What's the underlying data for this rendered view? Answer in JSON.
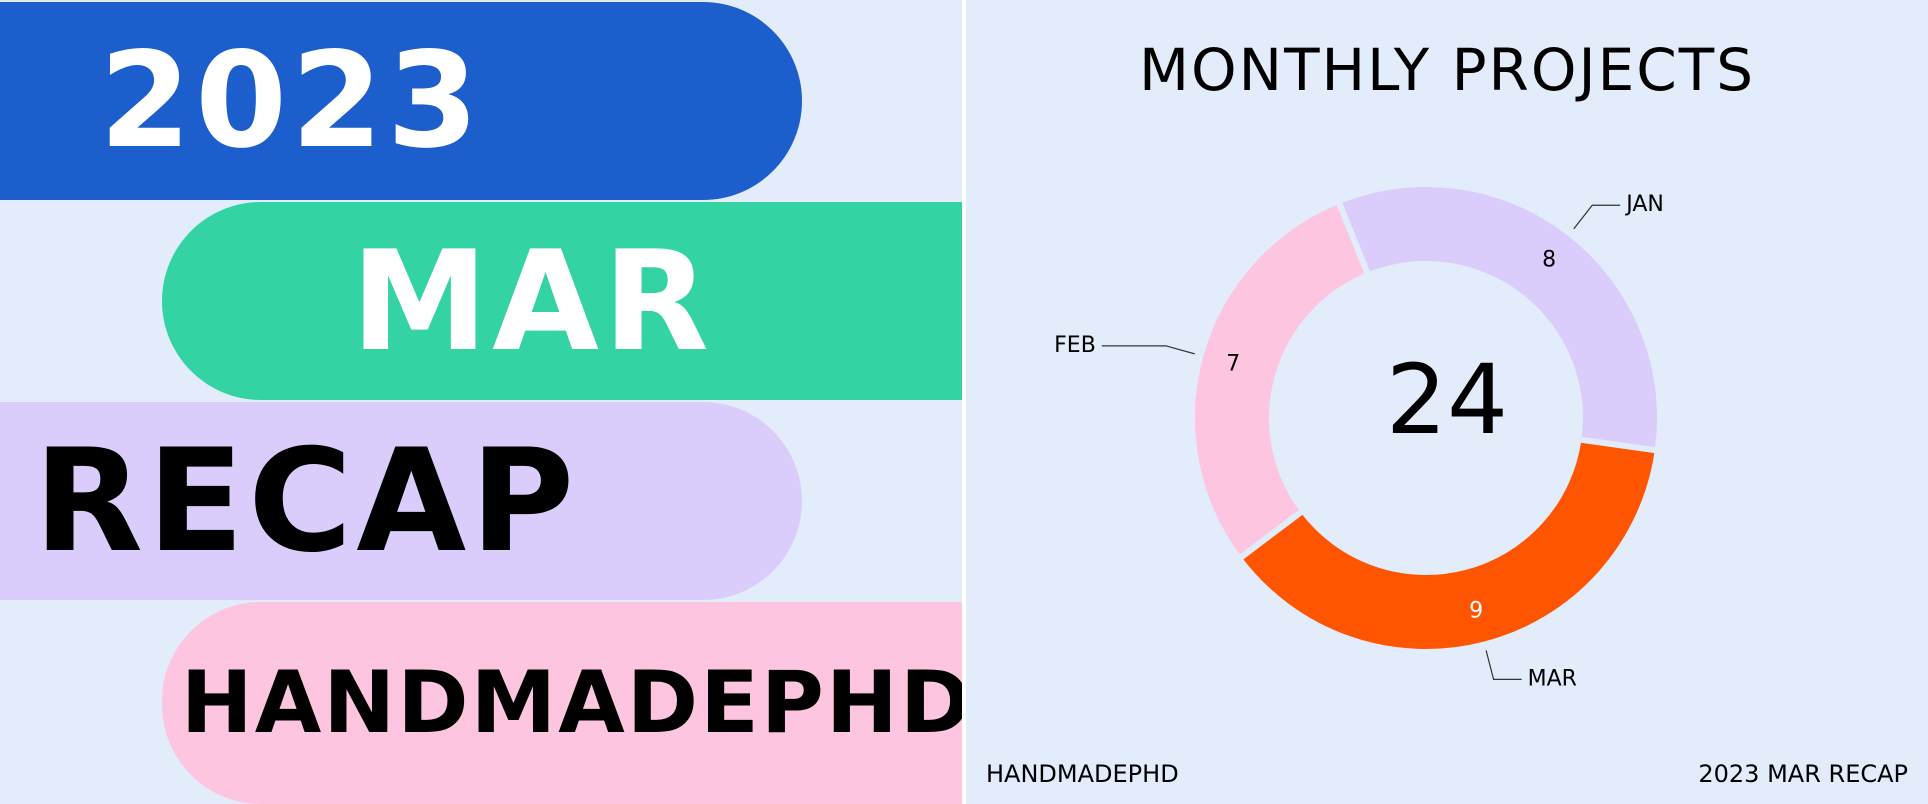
{
  "poster": {
    "year": "2023",
    "month": "MAR",
    "recap": "RECAP",
    "brand": "HANDMADEPHD"
  },
  "footer": {
    "left": "HANDMADEPHD",
    "right": "2023 MAR RECAP"
  },
  "colors": {
    "background": "#e2ecfb",
    "year_band": "#1c5fcc",
    "month_band": "#33d3a4",
    "recap_band": "#dacdfc",
    "brand_band": "#fdc5df"
  },
  "chart_data": {
    "type": "pie",
    "style": "donut",
    "title": "MONTHLY PROJECTS",
    "center_label": "24",
    "slices": [
      {
        "label": "FEB",
        "value": 7,
        "color": "#fdc5df"
      },
      {
        "label": "JAN",
        "value": 8,
        "color": "#dacdfc"
      },
      {
        "label": "MAR",
        "value": 9,
        "color": "#ff5500"
      }
    ]
  }
}
